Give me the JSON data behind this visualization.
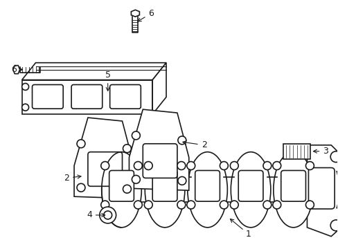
{
  "background_color": "#ffffff",
  "line_color": "#1a1a1a",
  "line_width": 1.2,
  "label_fontsize": 9
}
